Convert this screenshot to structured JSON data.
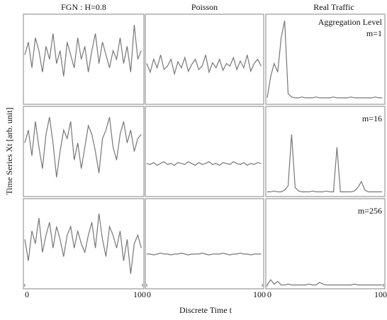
{
  "chart_data": [
    {
      "type": "line",
      "title": "FGN : H=0.8",
      "x": [
        0,
        3,
        6,
        9,
        12,
        15,
        18,
        21,
        24,
        27,
        30,
        33,
        36,
        39,
        42,
        45,
        48,
        51,
        54,
        57,
        60,
        63,
        66,
        69,
        72,
        75,
        78,
        81,
        84,
        87,
        90,
        93,
        96,
        99
      ],
      "values": [
        0.55,
        0.7,
        0.4,
        0.75,
        0.6,
        0.35,
        0.65,
        0.5,
        0.8,
        0.45,
        0.6,
        0.3,
        0.7,
        0.55,
        0.4,
        0.75,
        0.5,
        0.65,
        0.35,
        0.6,
        0.8,
        0.45,
        0.7,
        0.55,
        0.4,
        0.6,
        0.5,
        0.75,
        0.45,
        0.65,
        0.35,
        0.9,
        0.5,
        0.6
      ],
      "xlim": [
        0,
        100
      ],
      "ylim": [
        0,
        1
      ],
      "color": "#777777"
    },
    {
      "type": "line",
      "title": "Poisson",
      "x": [
        0,
        3,
        6,
        9,
        12,
        15,
        18,
        21,
        24,
        27,
        30,
        33,
        36,
        39,
        42,
        45,
        48,
        51,
        54,
        57,
        60,
        63,
        66,
        69,
        72,
        75,
        78,
        81,
        84,
        87,
        90,
        93,
        96,
        99
      ],
      "values": [
        0.45,
        0.35,
        0.5,
        0.4,
        0.55,
        0.38,
        0.42,
        0.5,
        0.33,
        0.47,
        0.4,
        0.52,
        0.36,
        0.44,
        0.5,
        0.38,
        0.42,
        0.55,
        0.35,
        0.46,
        0.4,
        0.5,
        0.37,
        0.45,
        0.42,
        0.52,
        0.38,
        0.48,
        0.4,
        0.55,
        0.36,
        0.45,
        0.5,
        0.42
      ],
      "xlim": [
        0,
        100
      ],
      "ylim": [
        0,
        1
      ],
      "color": "#777777"
    },
    {
      "type": "line",
      "title": "Real Traffic",
      "subtitle": "Aggregation Level",
      "annotation": "m=1",
      "x": [
        0,
        3,
        6,
        9,
        12,
        15,
        18,
        21,
        24,
        27,
        30,
        33,
        36,
        39,
        42,
        45,
        48,
        51,
        54,
        57,
        60,
        63,
        66,
        69,
        72,
        75,
        78,
        81,
        84,
        87,
        90,
        93,
        96,
        99
      ],
      "values": [
        0.05,
        0.3,
        0.45,
        0.35,
        0.75,
        0.95,
        0.1,
        0.06,
        0.05,
        0.05,
        0.06,
        0.05,
        0.05,
        0.05,
        0.06,
        0.05,
        0.05,
        0.05,
        0.05,
        0.06,
        0.05,
        0.05,
        0.05,
        0.05,
        0.06,
        0.05,
        0.05,
        0.05,
        0.05,
        0.05,
        0.05,
        0.06,
        0.05,
        0.05
      ],
      "xlim": [
        0,
        100
      ],
      "ylim": [
        0,
        1
      ],
      "color": "#777777"
    },
    {
      "type": "line",
      "y_label": "Time Series Xt [arb. unit]",
      "x": [
        0,
        3,
        6,
        9,
        12,
        15,
        18,
        21,
        24,
        27,
        30,
        33,
        36,
        39,
        42,
        45,
        48,
        51,
        54,
        57,
        60,
        63,
        66,
        69,
        72,
        75,
        78,
        81,
        84,
        87,
        90,
        93,
        96,
        99
      ],
      "values": [
        0.6,
        0.75,
        0.45,
        0.85,
        0.55,
        0.3,
        0.7,
        0.9,
        0.6,
        0.2,
        0.5,
        0.75,
        0.65,
        0.85,
        0.4,
        0.6,
        0.3,
        0.55,
        0.8,
        0.7,
        0.5,
        0.25,
        0.65,
        0.75,
        0.9,
        0.55,
        0.4,
        0.7,
        0.85,
        0.6,
        0.75,
        0.5,
        0.65,
        0.7
      ],
      "xlim": [
        0,
        100
      ],
      "ylim": [
        0,
        1
      ],
      "color": "#777777"
    },
    {
      "type": "line",
      "x": [
        0,
        3,
        6,
        9,
        12,
        15,
        18,
        21,
        24,
        27,
        30,
        33,
        36,
        39,
        42,
        45,
        48,
        51,
        54,
        57,
        60,
        63,
        66,
        69,
        72,
        75,
        78,
        81,
        84,
        87,
        90,
        93,
        96,
        99
      ],
      "values": [
        0.36,
        0.35,
        0.37,
        0.34,
        0.36,
        0.38,
        0.35,
        0.36,
        0.34,
        0.37,
        0.36,
        0.35,
        0.38,
        0.36,
        0.34,
        0.37,
        0.35,
        0.36,
        0.38,
        0.35,
        0.36,
        0.34,
        0.37,
        0.36,
        0.35,
        0.38,
        0.36,
        0.35,
        0.37,
        0.34,
        0.36,
        0.35,
        0.37,
        0.36
      ],
      "xlim": [
        0,
        100
      ],
      "ylim": [
        0,
        1
      ],
      "color": "#777777"
    },
    {
      "type": "line",
      "annotation": "m=16",
      "x": [
        0,
        3,
        6,
        9,
        12,
        15,
        18,
        21,
        24,
        27,
        30,
        33,
        36,
        39,
        42,
        45,
        48,
        51,
        54,
        57,
        60,
        63,
        66,
        69,
        72,
        75,
        78,
        81,
        84,
        87,
        90,
        93,
        96,
        99
      ],
      "values": [
        0.03,
        0.03,
        0.04,
        0.03,
        0.03,
        0.05,
        0.1,
        0.7,
        0.08,
        0.04,
        0.03,
        0.03,
        0.03,
        0.04,
        0.03,
        0.03,
        0.03,
        0.04,
        0.03,
        0.03,
        0.55,
        0.03,
        0.03,
        0.03,
        0.03,
        0.04,
        0.08,
        0.15,
        0.05,
        0.03,
        0.03,
        0.03,
        0.03,
        0.03
      ],
      "xlim": [
        0,
        100
      ],
      "ylim": [
        0,
        1
      ],
      "color": "#777777"
    },
    {
      "type": "line",
      "x": [
        0,
        3,
        6,
        9,
        12,
        15,
        18,
        21,
        24,
        27,
        30,
        33,
        36,
        39,
        42,
        45,
        48,
        51,
        54,
        57,
        60,
        63,
        66,
        69,
        72,
        75,
        78,
        81,
        84,
        87,
        90,
        93,
        96,
        99
      ],
      "values": [
        0.55,
        0.3,
        0.65,
        0.5,
        0.8,
        0.4,
        0.6,
        0.75,
        0.45,
        0.7,
        0.55,
        0.35,
        0.6,
        0.7,
        0.45,
        0.65,
        0.5,
        0.4,
        0.6,
        0.75,
        0.45,
        0.85,
        0.55,
        0.35,
        0.7,
        0.6,
        0.45,
        0.65,
        0.3,
        0.55,
        0.15,
        0.5,
        0.6,
        0.45
      ],
      "xlim": [
        0,
        100
      ],
      "ylim": [
        0,
        1
      ],
      "xticks": [
        0,
        100
      ],
      "color": "#777777"
    },
    {
      "type": "line",
      "x_label": "Discrete Time t",
      "x": [
        0,
        3,
        6,
        9,
        12,
        15,
        18,
        21,
        24,
        27,
        30,
        33,
        36,
        39,
        42,
        45,
        48,
        51,
        54,
        57,
        60,
        63,
        66,
        69,
        72,
        75,
        78,
        81,
        84,
        87,
        90,
        93,
        96,
        99
      ],
      "values": [
        0.38,
        0.38,
        0.37,
        0.38,
        0.39,
        0.38,
        0.38,
        0.37,
        0.38,
        0.38,
        0.39,
        0.38,
        0.37,
        0.38,
        0.38,
        0.38,
        0.39,
        0.38,
        0.37,
        0.38,
        0.38,
        0.38,
        0.39,
        0.38,
        0.37,
        0.38,
        0.38,
        0.39,
        0.38,
        0.38,
        0.37,
        0.38,
        0.38,
        0.38
      ],
      "xlim": [
        0,
        100
      ],
      "ylim": [
        0,
        1
      ],
      "xticks": [
        0,
        100
      ],
      "color": "#777777"
    },
    {
      "type": "line",
      "annotation": "m=256",
      "x": [
        0,
        3,
        6,
        9,
        12,
        15,
        18,
        21,
        24,
        27,
        30,
        33,
        36,
        39,
        42,
        45,
        48,
        51,
        54,
        57,
        60,
        63,
        66,
        69,
        72,
        75,
        78,
        81,
        84,
        87,
        90,
        93,
        96,
        99
      ],
      "values": [
        0.02,
        0.08,
        0.03,
        0.06,
        0.02,
        0.02,
        0.03,
        0.02,
        0.02,
        0.02,
        0.02,
        0.02,
        0.03,
        0.02,
        0.02,
        0.05,
        0.03,
        0.02,
        0.02,
        0.02,
        0.02,
        0.02,
        0.02,
        0.02,
        0.02,
        0.03,
        0.02,
        0.02,
        0.02,
        0.02,
        0.02,
        0.02,
        0.02,
        0.02
      ],
      "xlim": [
        0,
        100
      ],
      "ylim": [
        0,
        1
      ],
      "xticks": [
        0,
        100
      ],
      "color": "#777777"
    }
  ]
}
